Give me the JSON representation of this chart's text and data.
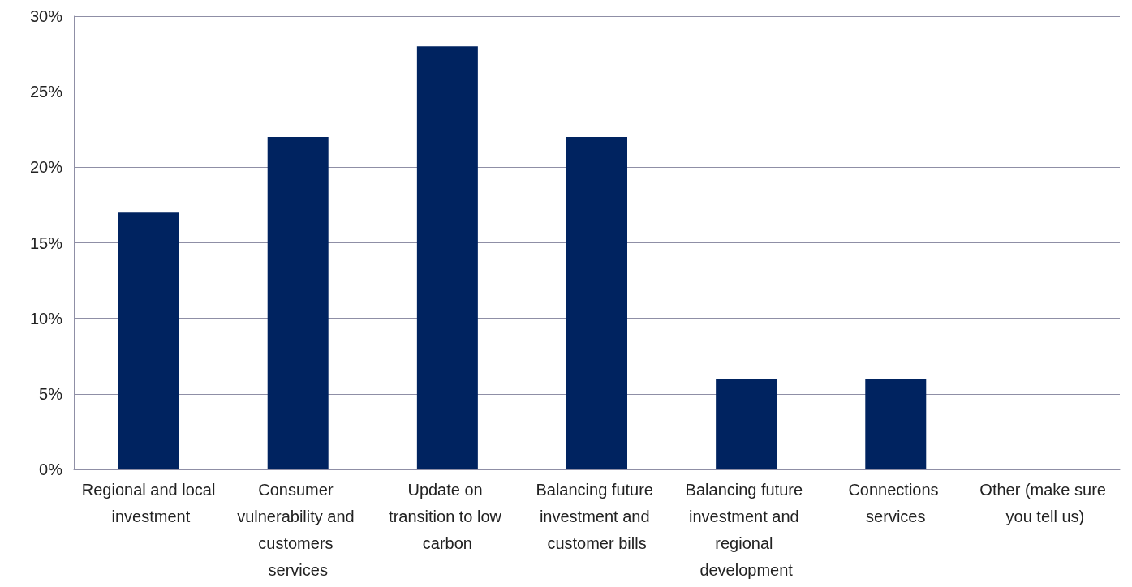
{
  "chart_data": {
    "type": "bar",
    "categories": [
      "Regional and local investment",
      "Consumer vulnerability and customers services",
      "Update on transition to low carbon",
      "Balancing future investment and customer bills",
      "Balancing future investment and regional development",
      "Connections services",
      "Other (make sure you tell us)"
    ],
    "values": [
      17,
      22,
      28,
      22,
      6,
      6,
      0
    ],
    "color": "#002360",
    "ylim": [
      0,
      30
    ],
    "yticks": [
      {
        "value": 0,
        "label": "0%"
      },
      {
        "value": 5,
        "label": "5%"
      },
      {
        "value": 10,
        "label": "10%"
      },
      {
        "value": 15,
        "label": "15%"
      },
      {
        "value": 20,
        "label": "20%"
      },
      {
        "value": 25,
        "label": "25%"
      },
      {
        "value": 30,
        "label": "30%"
      }
    ],
    "grid": "y"
  }
}
